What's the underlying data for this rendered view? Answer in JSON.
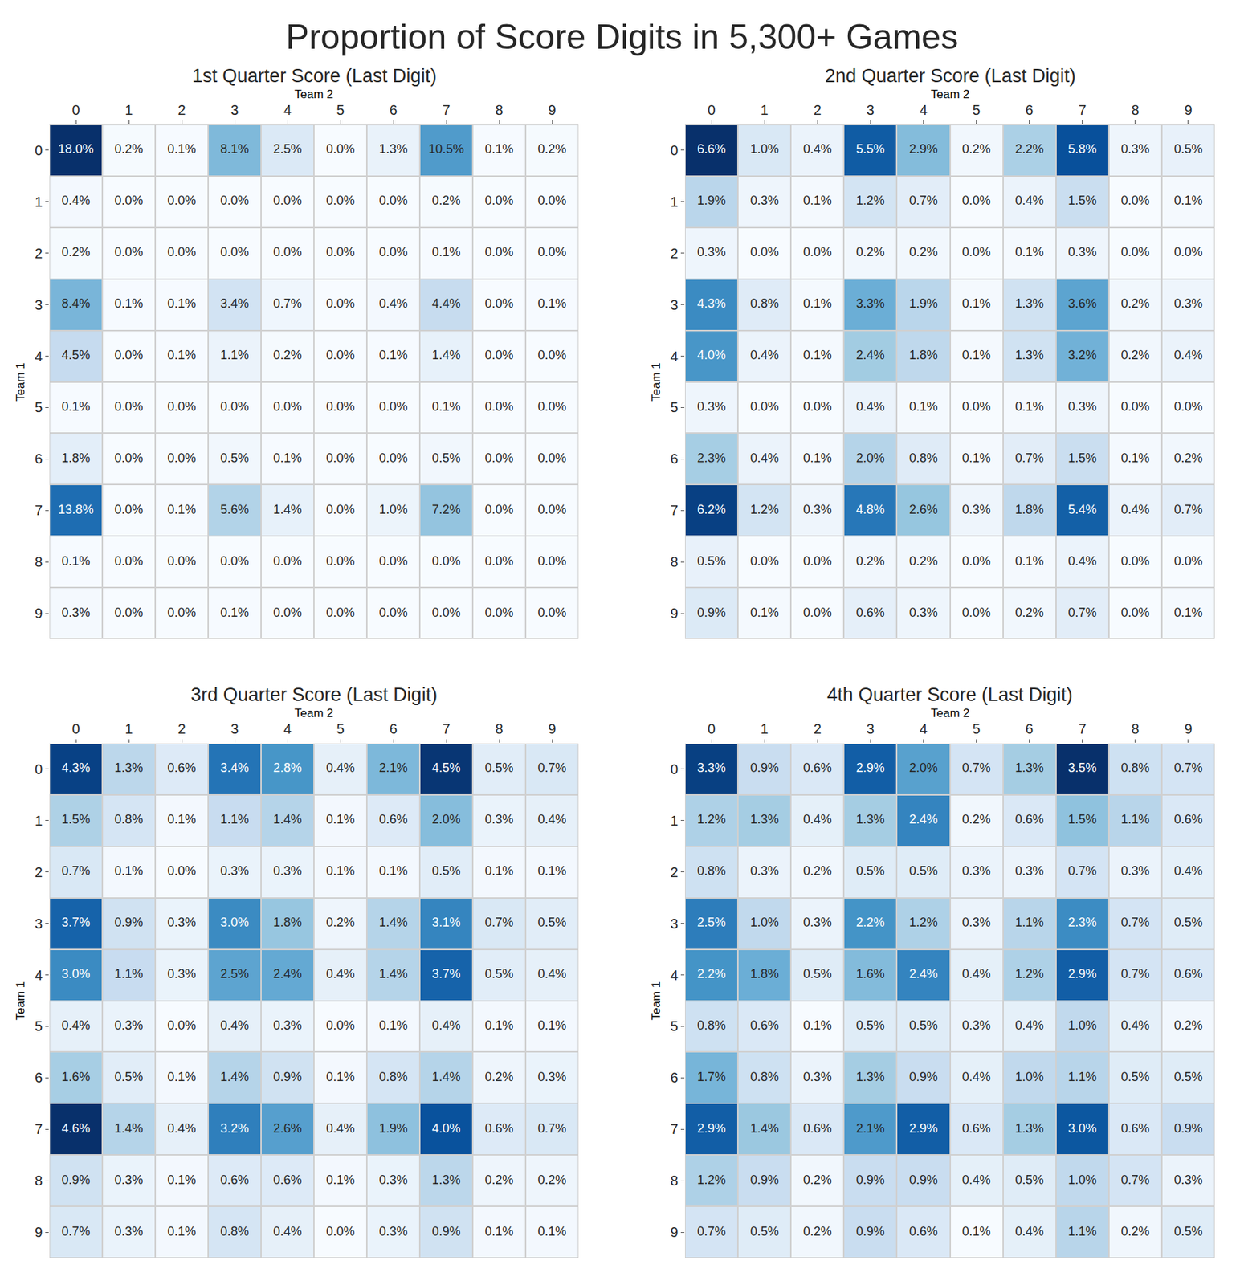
{
  "title": "Proportion of Score Digits in 5,300+ Games",
  "chart_data": [
    {
      "type": "heatmap",
      "title": "1st Quarter Score (Last Digit)",
      "x_label": "Team 2",
      "y_label": "Team 1",
      "x": [
        "0",
        "1",
        "2",
        "3",
        "4",
        "5",
        "6",
        "7",
        "8",
        "9"
      ],
      "y": [
        "0",
        "1",
        "2",
        "3",
        "4",
        "5",
        "6",
        "7",
        "8",
        "9"
      ],
      "data_labels": true,
      "z": [
        [
          18.0,
          0.2,
          0.1,
          8.1,
          2.5,
          0.0,
          1.3,
          10.5,
          0.1,
          0.2
        ],
        [
          0.4,
          0.0,
          0.0,
          0.0,
          0.0,
          0.0,
          0.0,
          0.2,
          0.0,
          0.0
        ],
        [
          0.2,
          0.0,
          0.0,
          0.0,
          0.0,
          0.0,
          0.0,
          0.1,
          0.0,
          0.0
        ],
        [
          8.4,
          0.1,
          0.1,
          3.4,
          0.7,
          0.0,
          0.4,
          4.4,
          0.0,
          0.1
        ],
        [
          4.5,
          0.0,
          0.1,
          1.1,
          0.2,
          0.0,
          0.1,
          1.4,
          0.0,
          0.0
        ],
        [
          0.1,
          0.0,
          0.0,
          0.0,
          0.0,
          0.0,
          0.0,
          0.1,
          0.0,
          0.0
        ],
        [
          1.8,
          0.0,
          0.0,
          0.5,
          0.1,
          0.0,
          0.0,
          0.5,
          0.0,
          0.0
        ],
        [
          13.8,
          0.0,
          0.1,
          5.6,
          1.4,
          0.0,
          1.0,
          7.2,
          0.0,
          0.0
        ],
        [
          0.1,
          0.0,
          0.0,
          0.0,
          0.0,
          0.0,
          0.0,
          0.0,
          0.0,
          0.0
        ],
        [
          0.3,
          0.0,
          0.0,
          0.1,
          0.0,
          0.0,
          0.0,
          0.0,
          0.0,
          0.0
        ]
      ],
      "value_labels": [
        [
          "18.0%",
          "0.2%",
          "0.1%",
          "8.1%",
          "2.5%",
          "0.0%",
          "1.3%",
          "10.5%",
          "0.1%",
          "0.2%"
        ],
        [
          "0.4%",
          "0.0%",
          "0.0%",
          "0.0%",
          "0.0%",
          "0.0%",
          "0.0%",
          "0.2%",
          "0.0%",
          "0.0%"
        ],
        [
          "0.2%",
          "0.0%",
          "0.0%",
          "0.0%",
          "0.0%",
          "0.0%",
          "0.0%",
          "0.1%",
          "0.0%",
          "0.0%"
        ],
        [
          "8.4%",
          "0.1%",
          "0.1%",
          "3.4%",
          "0.7%",
          "0.0%",
          "0.4%",
          "4.4%",
          "0.0%",
          "0.1%"
        ],
        [
          "4.5%",
          "0.0%",
          "0.1%",
          "1.1%",
          "0.2%",
          "0.0%",
          "0.1%",
          "1.4%",
          "0.0%",
          "0.0%"
        ],
        [
          "0.1%",
          "0.0%",
          "0.0%",
          "0.0%",
          "0.0%",
          "0.0%",
          "0.0%",
          "0.1%",
          "0.0%",
          "0.0%"
        ],
        [
          "1.8%",
          "0.0%",
          "0.0%",
          "0.5%",
          "0.1%",
          "0.0%",
          "0.0%",
          "0.5%",
          "0.0%",
          "0.0%"
        ],
        [
          "13.8%",
          "0.0%",
          "0.1%",
          "5.6%",
          "1.4%",
          "0.0%",
          "1.0%",
          "7.2%",
          "0.0%",
          "0.0%"
        ],
        [
          "0.1%",
          "0.0%",
          "0.0%",
          "0.0%",
          "0.0%",
          "0.0%",
          "0.0%",
          "0.0%",
          "0.0%",
          "0.0%"
        ],
        [
          "0.3%",
          "0.0%",
          "0.0%",
          "0.1%",
          "0.0%",
          "0.0%",
          "0.0%",
          "0.0%",
          "0.0%",
          "0.0%"
        ]
      ]
    },
    {
      "type": "heatmap",
      "title": "2nd Quarter Score (Last Digit)",
      "x_label": "Team 2",
      "y_label": "Team 1",
      "x": [
        "0",
        "1",
        "2",
        "3",
        "4",
        "5",
        "6",
        "7",
        "8",
        "9"
      ],
      "y": [
        "0",
        "1",
        "2",
        "3",
        "4",
        "5",
        "6",
        "7",
        "8",
        "9"
      ],
      "data_labels": true,
      "z": [
        [
          6.6,
          1.0,
          0.4,
          5.5,
          2.9,
          0.2,
          2.2,
          5.8,
          0.3,
          0.5
        ],
        [
          1.9,
          0.3,
          0.1,
          1.2,
          0.7,
          0.0,
          0.4,
          1.5,
          0.0,
          0.1
        ],
        [
          0.3,
          0.0,
          0.0,
          0.2,
          0.2,
          0.0,
          0.1,
          0.3,
          0.0,
          0.0
        ],
        [
          4.3,
          0.8,
          0.1,
          3.3,
          1.9,
          0.1,
          1.3,
          3.6,
          0.2,
          0.3
        ],
        [
          4.0,
          0.4,
          0.1,
          2.4,
          1.8,
          0.1,
          1.3,
          3.2,
          0.2,
          0.4
        ],
        [
          0.3,
          0.0,
          0.0,
          0.4,
          0.1,
          0.0,
          0.1,
          0.3,
          0.0,
          0.0
        ],
        [
          2.3,
          0.4,
          0.1,
          2.0,
          0.8,
          0.1,
          0.7,
          1.5,
          0.1,
          0.2
        ],
        [
          6.2,
          1.2,
          0.3,
          4.8,
          2.6,
          0.3,
          1.8,
          5.4,
          0.4,
          0.7
        ],
        [
          0.5,
          0.0,
          0.0,
          0.2,
          0.2,
          0.0,
          0.1,
          0.4,
          0.0,
          0.0
        ],
        [
          0.9,
          0.1,
          0.0,
          0.6,
          0.3,
          0.0,
          0.2,
          0.7,
          0.0,
          0.1
        ]
      ],
      "value_labels": [
        [
          "6.6%",
          "1.0%",
          "0.4%",
          "5.5%",
          "2.9%",
          "0.2%",
          "2.2%",
          "5.8%",
          "0.3%",
          "0.5%"
        ],
        [
          "1.9%",
          "0.3%",
          "0.1%",
          "1.2%",
          "0.7%",
          "0.0%",
          "0.4%",
          "1.5%",
          "0.0%",
          "0.1%"
        ],
        [
          "0.3%",
          "0.0%",
          "0.0%",
          "0.2%",
          "0.2%",
          "0.0%",
          "0.1%",
          "0.3%",
          "0.0%",
          "0.0%"
        ],
        [
          "4.3%",
          "0.8%",
          "0.1%",
          "3.3%",
          "1.9%",
          "0.1%",
          "1.3%",
          "3.6%",
          "0.2%",
          "0.3%"
        ],
        [
          "4.0%",
          "0.4%",
          "0.1%",
          "2.4%",
          "1.8%",
          "0.1%",
          "1.3%",
          "3.2%",
          "0.2%",
          "0.4%"
        ],
        [
          "0.3%",
          "0.0%",
          "0.0%",
          "0.4%",
          "0.1%",
          "0.0%",
          "0.1%",
          "0.3%",
          "0.0%",
          "0.0%"
        ],
        [
          "2.3%",
          "0.4%",
          "0.1%",
          "2.0%",
          "0.8%",
          "0.1%",
          "0.7%",
          "1.5%",
          "0.1%",
          "0.2%"
        ],
        [
          "6.2%",
          "1.2%",
          "0.3%",
          "4.8%",
          "2.6%",
          "0.3%",
          "1.8%",
          "5.4%",
          "0.4%",
          "0.7%"
        ],
        [
          "0.5%",
          "0.0%",
          "0.0%",
          "0.2%",
          "0.2%",
          "0.0%",
          "0.1%",
          "0.4%",
          "0.0%",
          "0.0%"
        ],
        [
          "0.9%",
          "0.1%",
          "0.0%",
          "0.6%",
          "0.3%",
          "0.0%",
          "0.2%",
          "0.7%",
          "0.0%",
          "0.1%"
        ]
      ]
    },
    {
      "type": "heatmap",
      "title": "3rd Quarter Score (Last Digit)",
      "x_label": "Team 2",
      "y_label": "Team 1",
      "x": [
        "0",
        "1",
        "2",
        "3",
        "4",
        "5",
        "6",
        "7",
        "8",
        "9"
      ],
      "y": [
        "0",
        "1",
        "2",
        "3",
        "4",
        "5",
        "6",
        "7",
        "8",
        "9"
      ],
      "data_labels": true,
      "z": [
        [
          4.3,
          1.3,
          0.6,
          3.4,
          2.8,
          0.4,
          2.1,
          4.5,
          0.5,
          0.7
        ],
        [
          1.5,
          0.8,
          0.1,
          1.1,
          1.4,
          0.1,
          0.6,
          2.0,
          0.3,
          0.4
        ],
        [
          0.7,
          0.1,
          0.0,
          0.3,
          0.3,
          0.1,
          0.1,
          0.5,
          0.1,
          0.1
        ],
        [
          3.7,
          0.9,
          0.3,
          3.0,
          1.8,
          0.2,
          1.4,
          3.1,
          0.7,
          0.5
        ],
        [
          3.0,
          1.1,
          0.3,
          2.5,
          2.4,
          0.4,
          1.4,
          3.7,
          0.5,
          0.4
        ],
        [
          0.4,
          0.3,
          0.0,
          0.4,
          0.3,
          0.0,
          0.1,
          0.4,
          0.1,
          0.1
        ],
        [
          1.6,
          0.5,
          0.1,
          1.4,
          0.9,
          0.1,
          0.8,
          1.4,
          0.2,
          0.3
        ],
        [
          4.6,
          1.4,
          0.4,
          3.2,
          2.6,
          0.4,
          1.9,
          4.0,
          0.6,
          0.7
        ],
        [
          0.9,
          0.3,
          0.1,
          0.6,
          0.6,
          0.1,
          0.3,
          1.3,
          0.2,
          0.2
        ],
        [
          0.7,
          0.3,
          0.1,
          0.8,
          0.4,
          0.0,
          0.3,
          0.9,
          0.1,
          0.1
        ]
      ],
      "value_labels": [
        [
          "4.3%",
          "1.3%",
          "0.6%",
          "3.4%",
          "2.8%",
          "0.4%",
          "2.1%",
          "4.5%",
          "0.5%",
          "0.7%"
        ],
        [
          "1.5%",
          "0.8%",
          "0.1%",
          "1.1%",
          "1.4%",
          "0.1%",
          "0.6%",
          "2.0%",
          "0.3%",
          "0.4%"
        ],
        [
          "0.7%",
          "0.1%",
          "0.0%",
          "0.3%",
          "0.3%",
          "0.1%",
          "0.1%",
          "0.5%",
          "0.1%",
          "0.1%"
        ],
        [
          "3.7%",
          "0.9%",
          "0.3%",
          "3.0%",
          "1.8%",
          "0.2%",
          "1.4%",
          "3.1%",
          "0.7%",
          "0.5%"
        ],
        [
          "3.0%",
          "1.1%",
          "0.3%",
          "2.5%",
          "2.4%",
          "0.4%",
          "1.4%",
          "3.7%",
          "0.5%",
          "0.4%"
        ],
        [
          "0.4%",
          "0.3%",
          "0.0%",
          "0.4%",
          "0.3%",
          "0.0%",
          "0.1%",
          "0.4%",
          "0.1%",
          "0.1%"
        ],
        [
          "1.6%",
          "0.5%",
          "0.1%",
          "1.4%",
          "0.9%",
          "0.1%",
          "0.8%",
          "1.4%",
          "0.2%",
          "0.3%"
        ],
        [
          "4.6%",
          "1.4%",
          "0.4%",
          "3.2%",
          "2.6%",
          "0.4%",
          "1.9%",
          "4.0%",
          "0.6%",
          "0.7%"
        ],
        [
          "0.9%",
          "0.3%",
          "0.1%",
          "0.6%",
          "0.6%",
          "0.1%",
          "0.3%",
          "1.3%",
          "0.2%",
          "0.2%"
        ],
        [
          "0.7%",
          "0.3%",
          "0.1%",
          "0.8%",
          "0.4%",
          "0.0%",
          "0.3%",
          "0.9%",
          "0.1%",
          "0.1%"
        ]
      ]
    },
    {
      "type": "heatmap",
      "title": "4th Quarter Score (Last Digit)",
      "x_label": "Team 2",
      "y_label": "Team 1",
      "x": [
        "0",
        "1",
        "2",
        "3",
        "4",
        "5",
        "6",
        "7",
        "8",
        "9"
      ],
      "y": [
        "0",
        "1",
        "2",
        "3",
        "4",
        "5",
        "6",
        "7",
        "8",
        "9"
      ],
      "data_labels": true,
      "z": [
        [
          3.3,
          0.9,
          0.6,
          2.9,
          2.0,
          0.7,
          1.3,
          3.5,
          0.8,
          0.7
        ],
        [
          1.2,
          1.3,
          0.4,
          1.3,
          2.4,
          0.2,
          0.6,
          1.5,
          1.1,
          0.6
        ],
        [
          0.8,
          0.3,
          0.2,
          0.5,
          0.5,
          0.3,
          0.3,
          0.7,
          0.3,
          0.4
        ],
        [
          2.5,
          1.0,
          0.3,
          2.2,
          1.2,
          0.3,
          1.1,
          2.3,
          0.7,
          0.5
        ],
        [
          2.2,
          1.8,
          0.5,
          1.6,
          2.4,
          0.4,
          1.2,
          2.9,
          0.7,
          0.6
        ],
        [
          0.8,
          0.6,
          0.1,
          0.5,
          0.5,
          0.3,
          0.4,
          1.0,
          0.4,
          0.2
        ],
        [
          1.7,
          0.8,
          0.3,
          1.3,
          0.9,
          0.4,
          1.0,
          1.1,
          0.5,
          0.5
        ],
        [
          2.9,
          1.4,
          0.6,
          2.1,
          2.9,
          0.6,
          1.3,
          3.0,
          0.6,
          0.9
        ],
        [
          1.2,
          0.9,
          0.2,
          0.9,
          0.9,
          0.4,
          0.5,
          1.0,
          0.7,
          0.3
        ],
        [
          0.7,
          0.5,
          0.2,
          0.9,
          0.6,
          0.1,
          0.4,
          1.1,
          0.2,
          0.5
        ]
      ],
      "value_labels": [
        [
          "3.3%",
          "0.9%",
          "0.6%",
          "2.9%",
          "2.0%",
          "0.7%",
          "1.3%",
          "3.5%",
          "0.8%",
          "0.7%"
        ],
        [
          "1.2%",
          "1.3%",
          "0.4%",
          "1.3%",
          "2.4%",
          "0.2%",
          "0.6%",
          "1.5%",
          "1.1%",
          "0.6%"
        ],
        [
          "0.8%",
          "0.3%",
          "0.2%",
          "0.5%",
          "0.5%",
          "0.3%",
          "0.3%",
          "0.7%",
          "0.3%",
          "0.4%"
        ],
        [
          "2.5%",
          "1.0%",
          "0.3%",
          "2.2%",
          "1.2%",
          "0.3%",
          "1.1%",
          "2.3%",
          "0.7%",
          "0.5%"
        ],
        [
          "2.2%",
          "1.8%",
          "0.5%",
          "1.6%",
          "2.4%",
          "0.4%",
          "1.2%",
          "2.9%",
          "0.7%",
          "0.6%"
        ],
        [
          "0.8%",
          "0.6%",
          "0.1%",
          "0.5%",
          "0.5%",
          "0.3%",
          "0.4%",
          "1.0%",
          "0.4%",
          "0.2%"
        ],
        [
          "1.7%",
          "0.8%",
          "0.3%",
          "1.3%",
          "0.9%",
          "0.4%",
          "1.0%",
          "1.1%",
          "0.5%",
          "0.5%"
        ],
        [
          "2.9%",
          "1.4%",
          "0.6%",
          "2.1%",
          "2.9%",
          "0.6%",
          "1.3%",
          "3.0%",
          "0.6%",
          "0.9%"
        ],
        [
          "1.2%",
          "0.9%",
          "0.2%",
          "0.9%",
          "0.9%",
          "0.4%",
          "0.5%",
          "1.0%",
          "0.7%",
          "0.3%"
        ],
        [
          "0.7%",
          "0.5%",
          "0.2%",
          "0.9%",
          "0.6%",
          "0.1%",
          "0.4%",
          "1.1%",
          "0.2%",
          "0.5%"
        ]
      ]
    }
  ]
}
